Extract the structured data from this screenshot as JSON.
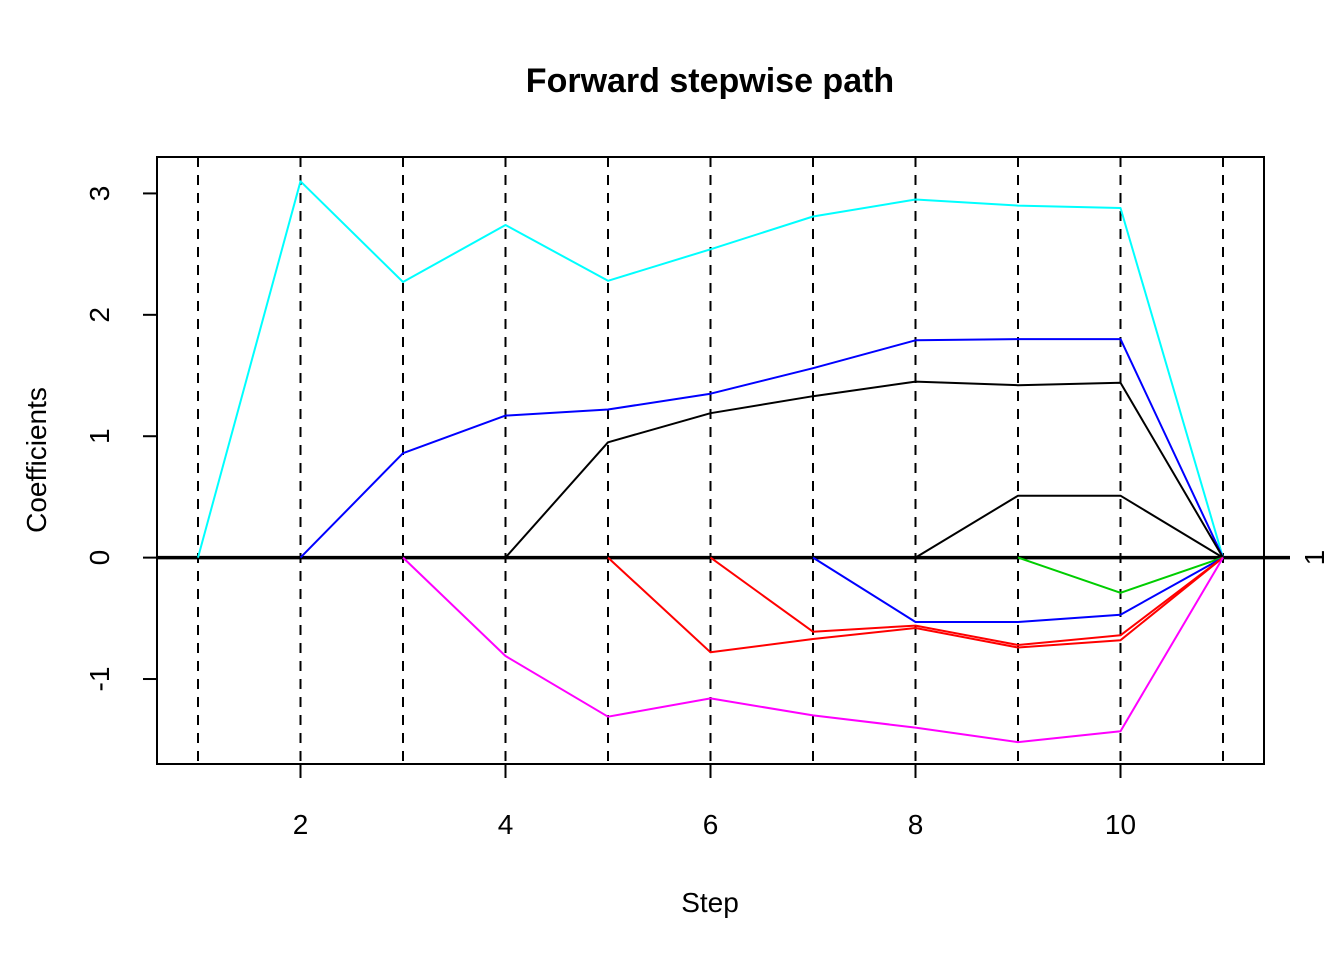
{
  "chart_data": {
    "type": "line",
    "title": "Forward stepwise path",
    "xlabel": "Step",
    "ylabel": "Coefficients",
    "xlim": [
      0.6,
      11.4
    ],
    "ylim": [
      -1.7,
      3.3
    ],
    "x_ticks": [
      2,
      4,
      6,
      8,
      10
    ],
    "y_ticks": [
      -1,
      0,
      1,
      2,
      3
    ],
    "vlines": [
      1,
      2,
      3,
      4,
      5,
      6,
      7,
      8,
      9,
      10,
      11
    ],
    "right_axis_label": "1",
    "right_axis_value": 0,
    "grid": false,
    "series": [
      {
        "color": "#00FFFF",
        "x": [
          1,
          2,
          3,
          4,
          5,
          6,
          7,
          8,
          9,
          10,
          11
        ],
        "y": [
          0,
          3.1,
          2.27,
          2.74,
          2.28,
          2.54,
          2.81,
          2.95,
          2.9,
          2.88,
          0
        ]
      },
      {
        "color": "#0000FF",
        "x": [
          2,
          3,
          4,
          5,
          6,
          7,
          8,
          9,
          10,
          11
        ],
        "y": [
          0,
          0.86,
          1.17,
          1.22,
          1.35,
          1.56,
          1.79,
          1.8,
          1.8,
          0
        ]
      },
      {
        "color": "#000000",
        "x": [
          4,
          5,
          6,
          7,
          8,
          9,
          10,
          11
        ],
        "y": [
          0,
          0.95,
          1.19,
          1.33,
          1.45,
          1.42,
          1.44,
          0
        ]
      },
      {
        "color": "#000000",
        "x": [
          8,
          9,
          10,
          11
        ],
        "y": [
          0,
          0.51,
          0.51,
          0
        ]
      },
      {
        "color": "#00CD00",
        "x": [
          9,
          10,
          11
        ],
        "y": [
          0,
          -0.29,
          0
        ]
      },
      {
        "color": "#0000FF",
        "x": [
          7,
          8,
          9,
          10,
          11
        ],
        "y": [
          0,
          -0.53,
          -0.53,
          -0.47,
          0
        ]
      },
      {
        "color": "#FF0000",
        "x": [
          6,
          7,
          8,
          9,
          10,
          11
        ],
        "y": [
          0,
          -0.61,
          -0.56,
          -0.72,
          -0.64,
          0
        ]
      },
      {
        "color": "#FF0000",
        "x": [
          5,
          6,
          7,
          8,
          9,
          10,
          11
        ],
        "y": [
          0,
          -0.78,
          -0.67,
          -0.58,
          -0.74,
          -0.68,
          0
        ]
      },
      {
        "color": "#FF00FF",
        "x": [
          3,
          4,
          5,
          6,
          7,
          8,
          9,
          10,
          11
        ],
        "y": [
          0,
          -0.81,
          -1.31,
          -1.16,
          -1.3,
          -1.4,
          -1.52,
          -1.43,
          0
        ]
      }
    ]
  }
}
